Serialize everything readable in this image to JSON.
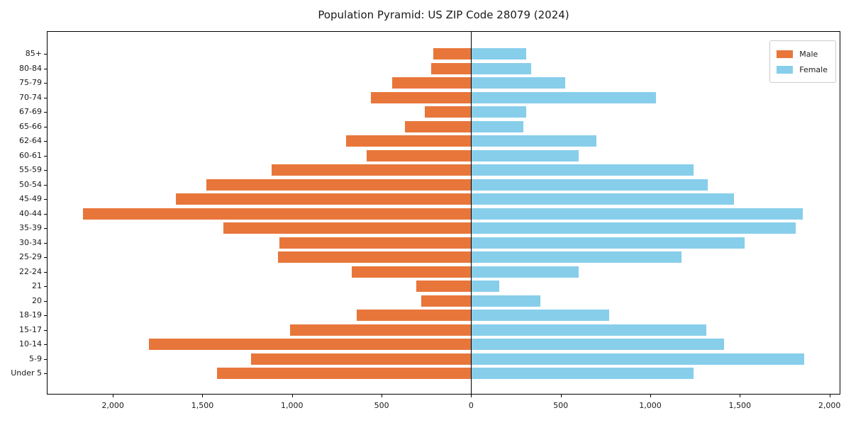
{
  "title": "Population Pyramid: US ZIP Code 28079 (2024)",
  "colors": {
    "male": "#E8763B",
    "female": "#87CEEB",
    "axis": "#000000",
    "text": "#1a1a1a"
  },
  "legend": {
    "entries": [
      "Male",
      "Female"
    ]
  },
  "chart_data": {
    "type": "bar",
    "subtype": "population-pyramid",
    "orientation": "horizontal",
    "title": "Population Pyramid: US ZIP Code 28079 (2024)",
    "categories_top_to_bottom": [
      "85+",
      "80-84",
      "75-79",
      "70-74",
      "67-69",
      "65-66",
      "62-64",
      "60-61",
      "55-59",
      "50-54",
      "45-49",
      "40-44",
      "35-39",
      "30-34",
      "25-29",
      "22-24",
      "21",
      "20",
      "18-19",
      "15-17",
      "10-14",
      "5-9",
      "Under 5"
    ],
    "series": [
      {
        "name": "Male",
        "side": "left",
        "color": "#E8763B",
        "values": [
          210,
          224,
          440,
          558,
          260,
          370,
          700,
          582,
          1115,
          1477,
          1650,
          2168,
          1382,
          1070,
          1080,
          665,
          307,
          280,
          640,
          1010,
          1800,
          1230,
          1420
        ]
      },
      {
        "name": "Female",
        "side": "right",
        "color": "#87CEEB",
        "values": [
          307,
          335,
          524,
          1032,
          308,
          291,
          700,
          602,
          1243,
          1322,
          1469,
          1850,
          1813,
          1528,
          1176,
          602,
          158,
          385,
          772,
          1314,
          1413,
          1860,
          1240
        ]
      }
    ],
    "x_tick_values": [
      -2000,
      -1500,
      -1000,
      -500,
      0,
      500,
      1000,
      1500,
      2000
    ],
    "x_tick_labels": [
      "2,000",
      "1,500",
      "1,000",
      "500",
      "0",
      "500",
      "1,000",
      "1,500",
      "2,000"
    ],
    "xlim": [
      -2365,
      2065
    ],
    "grid": false,
    "legend_position": "upper right"
  }
}
